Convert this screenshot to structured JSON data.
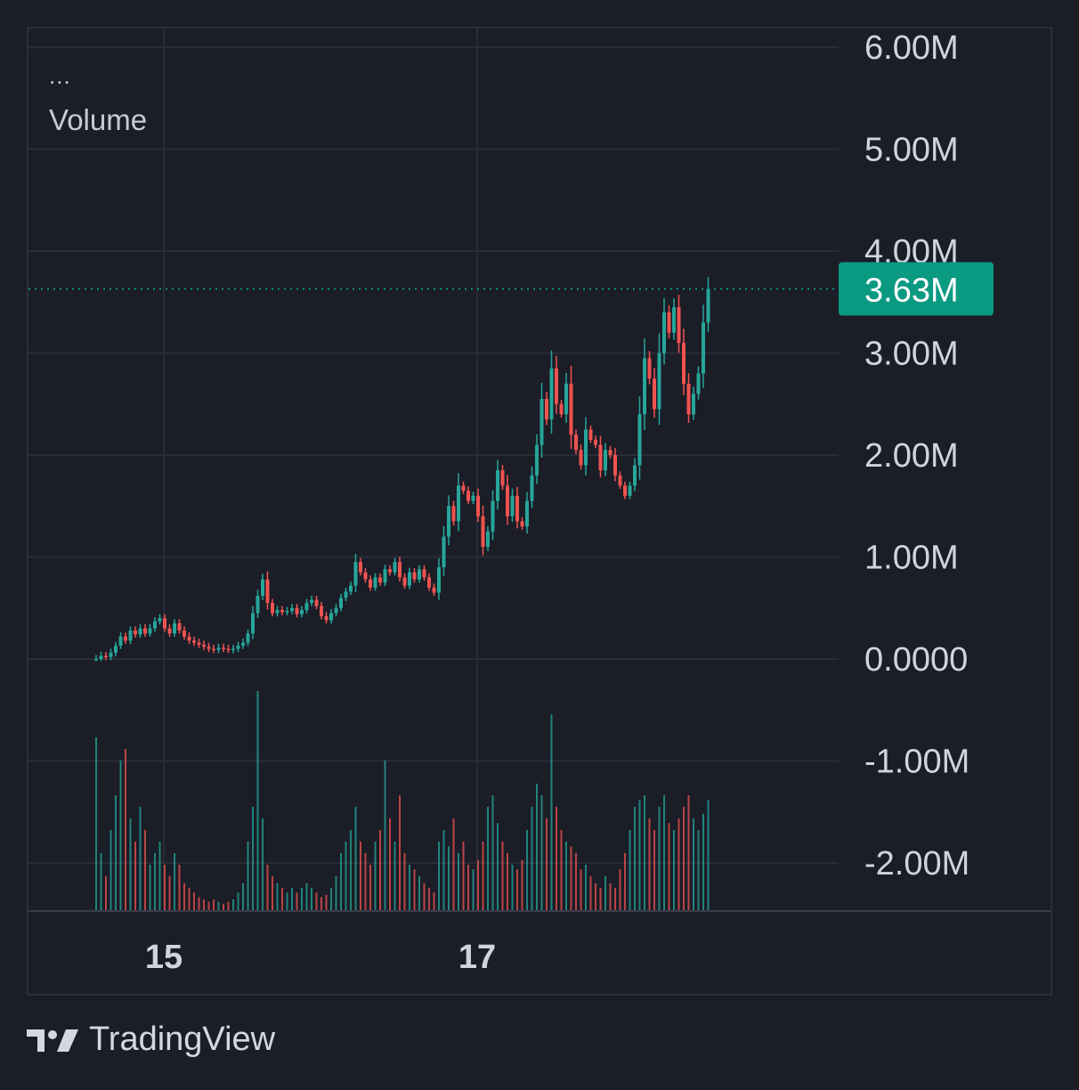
{
  "legend": {
    "menu": "...",
    "title": "Volume"
  },
  "brand": {
    "name": "TradingView",
    "logo_icon": "tradingview-logo-icon"
  },
  "colors": {
    "up": "#26a69a",
    "down": "#ef5350",
    "grid": "#2a2d38",
    "axis_text": "#d1d4dc",
    "price_label_bg": "#0a9981"
  },
  "chart_data": {
    "type": "candlestick",
    "title": "",
    "series_name": "Volume",
    "xlabel": "",
    "ylabel": "",
    "x_ticks": [
      "15",
      "17"
    ],
    "x_tick_index": [
      20,
      84
    ],
    "y_ticks": [
      "6.00M",
      "5.00M",
      "4.00M",
      "3.00M",
      "2.00M",
      "1.00M",
      "0.0000",
      "-1.00M",
      "-2.00M"
    ],
    "y_tick_values": [
      6000000,
      5000000,
      4000000,
      3000000,
      2000000,
      1000000,
      0,
      -1000000,
      -2000000
    ],
    "ylim": [
      -2400000,
      6200000
    ],
    "grid": true,
    "last_value": 3630000,
    "last_value_label": "3.63M",
    "close_series_millions": [
      0.0,
      0.03,
      0.02,
      0.06,
      0.13,
      0.22,
      0.18,
      0.28,
      0.24,
      0.3,
      0.25,
      0.3,
      0.37,
      0.4,
      0.3,
      0.25,
      0.35,
      0.28,
      0.22,
      0.18,
      0.16,
      0.14,
      0.12,
      0.1,
      0.09,
      0.11,
      0.1,
      0.09,
      0.1,
      0.13,
      0.16,
      0.25,
      0.45,
      0.62,
      0.78,
      0.55,
      0.45,
      0.48,
      0.46,
      0.47,
      0.5,
      0.44,
      0.48,
      0.55,
      0.58,
      0.52,
      0.42,
      0.38,
      0.45,
      0.5,
      0.6,
      0.66,
      0.72,
      0.95,
      0.85,
      0.78,
      0.7,
      0.8,
      0.75,
      0.88,
      0.85,
      0.95,
      0.8,
      0.72,
      0.85,
      0.78,
      0.88,
      0.8,
      0.7,
      0.65,
      0.9,
      1.2,
      1.5,
      1.35,
      1.7,
      1.65,
      1.55,
      1.6,
      1.4,
      1.1,
      1.25,
      1.55,
      1.85,
      1.7,
      1.4,
      1.6,
      1.35,
      1.3,
      1.55,
      1.8,
      2.1,
      2.55,
      2.35,
      2.85,
      2.5,
      2.4,
      2.7,
      2.2,
      2.05,
      1.9,
      2.25,
      2.15,
      2.1,
      1.85,
      2.05,
      2.0,
      1.8,
      1.7,
      1.6,
      1.7,
      1.9,
      2.4,
      2.95,
      2.75,
      2.45,
      3.0,
      3.4,
      3.2,
      3.45,
      3.1,
      2.7,
      2.4,
      2.6,
      2.8,
      3.3,
      3.63
    ],
    "volume_series_relative": [
      0.75,
      0.25,
      0.15,
      0.35,
      0.5,
      0.65,
      0.7,
      0.4,
      0.3,
      0.45,
      0.35,
      0.2,
      0.25,
      0.3,
      0.2,
      0.15,
      0.25,
      0.2,
      0.12,
      0.1,
      0.08,
      0.06,
      0.05,
      0.04,
      0.05,
      0.04,
      0.03,
      0.04,
      0.05,
      0.08,
      0.12,
      0.3,
      0.45,
      0.95,
      0.4,
      0.2,
      0.15,
      0.12,
      0.1,
      0.08,
      0.1,
      0.08,
      0.1,
      0.12,
      0.1,
      0.08,
      0.06,
      0.07,
      0.1,
      0.15,
      0.25,
      0.3,
      0.35,
      0.45,
      0.3,
      0.25,
      0.2,
      0.3,
      0.35,
      0.65,
      0.4,
      0.3,
      0.5,
      0.25,
      0.2,
      0.18,
      0.15,
      0.12,
      0.1,
      0.08,
      0.3,
      0.35,
      0.28,
      0.4,
      0.25,
      0.3,
      0.2,
      0.18,
      0.22,
      0.3,
      0.45,
      0.5,
      0.38,
      0.3,
      0.25,
      0.2,
      0.18,
      0.22,
      0.35,
      0.45,
      0.55,
      0.5,
      0.4,
      0.85,
      0.45,
      0.35,
      0.3,
      0.28,
      0.25,
      0.18,
      0.2,
      0.15,
      0.12,
      0.1,
      0.15,
      0.12,
      0.1,
      0.18,
      0.25,
      0.35,
      0.45,
      0.48,
      0.5,
      0.4,
      0.35,
      0.45,
      0.5,
      0.38,
      0.35,
      0.4,
      0.45,
      0.5,
      0.4,
      0.35,
      0.42,
      0.48
    ]
  }
}
